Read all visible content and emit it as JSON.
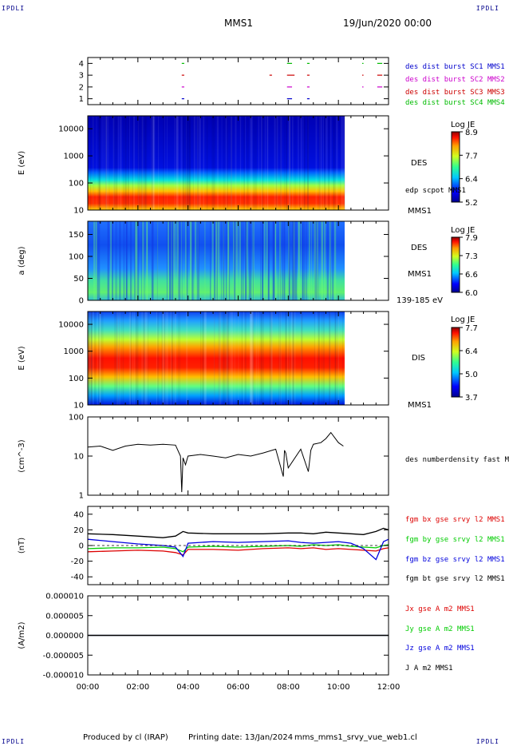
{
  "header": {
    "corner_tl": "IPDLI",
    "corner_tr": "IPDLI",
    "corner_bl": "IPDLI",
    "corner_br": "IPDLI",
    "title": "MMS1",
    "date": "19/Jun/2020 00:00"
  },
  "footer": {
    "produced": "Produced by cl (IRAP)",
    "printing": "Printing date: 13/Jan/2024",
    "file": "mms_mms1_srvy_vue_web1.cl"
  },
  "colors": {
    "des_c1": "#0000cc",
    "des_c2": "#cc00cc",
    "des_c3": "#cc0000",
    "des_c4": "#00bb00",
    "bx": "#dd0000",
    "by": "#00cc00",
    "bz": "#0000dd",
    "bt": "#000000"
  },
  "time_axis": {
    "ticks": [
      "00:00",
      "02:00",
      "04:00",
      "06:00",
      "08:00",
      "10:00",
      "12:00"
    ],
    "range_hours": [
      0,
      12
    ]
  },
  "chart_data": [
    {
      "type": "scatter",
      "panel": "burst",
      "yticks": [
        "1",
        "2",
        "3",
        "4"
      ],
      "ylim": [
        0.5,
        4.5
      ],
      "legend": [
        {
          "text": "des dist burst SC1 MMS1",
          "color": "#0000cc"
        },
        {
          "text": "des dist burst SC2 MMS2",
          "color": "#cc00cc"
        },
        {
          "text": "des dist burst SC3 MMS3",
          "color": "#cc0000"
        },
        {
          "text": "des dist burst SC4 MMS4",
          "color": "#00bb00"
        }
      ],
      "series": [
        {
          "sc": 1,
          "intervals": [
            [
              3.75,
              3.85
            ],
            [
              7.95,
              8.15
            ],
            [
              8.75,
              8.85
            ]
          ]
        },
        {
          "sc": 2,
          "intervals": [
            [
              3.75,
              3.85
            ],
            [
              7.95,
              8.15
            ],
            [
              8.75,
              8.85
            ],
            [
              10.95,
              11.0
            ],
            [
              11.55,
              11.75
            ]
          ]
        },
        {
          "sc": 3,
          "intervals": [
            [
              3.75,
              3.85
            ],
            [
              7.25,
              7.35
            ],
            [
              7.95,
              8.25
            ],
            [
              8.75,
              8.85
            ],
            [
              10.95,
              11.0
            ],
            [
              11.55,
              11.75
            ]
          ]
        },
        {
          "sc": 4,
          "intervals": [
            [
              3.75,
              3.85
            ],
            [
              7.95,
              8.15
            ],
            [
              8.75,
              8.85
            ],
            [
              10.95,
              11.0
            ],
            [
              11.55,
              11.75
            ]
          ]
        }
      ]
    },
    {
      "type": "heatmap",
      "panel": "des_energy",
      "ylabel": "E (eV)",
      "yscale": "log",
      "ylim": [
        10,
        30000
      ],
      "yticks": [
        "10",
        "100",
        "1000",
        "10000"
      ],
      "side_label": "DES",
      "side_label2": "edp scpot MMS1",
      "side_label3": "MMS1",
      "colorbar": {
        "title": "Log JE",
        "ticks": [
          "8.9",
          "7.7",
          "6.4",
          "5.2"
        ],
        "range": [
          5.2,
          8.9
        ]
      },
      "data_end_hour": 10.25
    },
    {
      "type": "heatmap",
      "panel": "des_pitch",
      "ylabel": "a (deg)",
      "ylim": [
        0,
        180
      ],
      "yticks": [
        "0",
        "50",
        "100",
        "150"
      ],
      "side_label": "DES",
      "side_label2": "MMS1",
      "side_label3": "139-185 eV",
      "colorbar": {
        "title": "Log JE",
        "ticks": [
          "7.9",
          "7.3",
          "6.6",
          "6.0"
        ],
        "range": [
          6.0,
          7.9
        ]
      },
      "data_end_hour": 10.25
    },
    {
      "type": "heatmap",
      "panel": "dis_energy",
      "ylabel": "E (eV)",
      "yscale": "log",
      "ylim": [
        10,
        30000
      ],
      "yticks": [
        "10",
        "100",
        "1000",
        "10000"
      ],
      "side_label": "DIS",
      "side_label2": "MMS1",
      "colorbar": {
        "title": "Log JE",
        "ticks": [
          "7.7",
          "6.4",
          "5.0",
          "3.7"
        ],
        "range": [
          3.7,
          7.7
        ]
      },
      "data_end_hour": 10.25
    },
    {
      "type": "line",
      "panel": "density",
      "ylabel": "(cm^-3)",
      "yscale": "log",
      "ylim": [
        1,
        100
      ],
      "yticks": [
        "1",
        "10",
        "100"
      ],
      "legend": [
        {
          "text": "des numberdensity fast M",
          "color": "#000000"
        }
      ],
      "x": [
        0.0,
        0.5,
        1.0,
        1.5,
        2.0,
        2.5,
        3.0,
        3.5,
        3.7,
        3.75,
        3.8,
        3.9,
        4.0,
        4.5,
        5.0,
        5.5,
        6.0,
        6.5,
        7.0,
        7.5,
        7.8,
        7.85,
        7.9,
        8.0,
        8.5,
        8.8,
        8.9,
        9.0,
        9.3,
        9.5,
        9.7,
        10.0,
        10.2
      ],
      "values": [
        17,
        18,
        14,
        18,
        20,
        19,
        20,
        19,
        10,
        1.2,
        9,
        6,
        10,
        11,
        10,
        9,
        11,
        10,
        12,
        15,
        3,
        14,
        12,
        5,
        15,
        4,
        14,
        20,
        22,
        28,
        40,
        22,
        18
      ]
    },
    {
      "type": "line",
      "panel": "bfield",
      "ylabel": "(nT)",
      "ylim": [
        -50,
        50
      ],
      "yticks": [
        "-40",
        "-20",
        "0",
        "20",
        "40"
      ],
      "x": [
        0,
        1,
        2,
        3,
        3.5,
        3.8,
        4,
        5,
        6,
        7,
        8,
        8.5,
        9,
        9.5,
        10,
        10.5,
        11,
        11.5,
        11.8,
        12
      ],
      "series": [
        {
          "name": "fgm bx gse srvy l2 MMS1",
          "color": "#dd0000",
          "values": [
            -8,
            -7,
            -6,
            -7,
            -9,
            -12,
            -5,
            -5,
            -6,
            -4,
            -3,
            -4,
            -3,
            -5,
            -4,
            -5,
            -6,
            -7,
            -4,
            -3
          ]
        },
        {
          "name": "fgm by gse srvy l2 MMS1",
          "color": "#00cc00",
          "values": [
            -4,
            -3,
            -3,
            -2,
            -4,
            -8,
            -2,
            -1,
            -2,
            -1,
            0,
            -1,
            1,
            0,
            1,
            -1,
            -2,
            -3,
            0,
            1
          ]
        },
        {
          "name": "fgm bz gse srvy l2 MMS1",
          "color": "#0000dd",
          "values": [
            8,
            5,
            2,
            0,
            -2,
            -14,
            3,
            5,
            4,
            5,
            6,
            4,
            3,
            4,
            5,
            3,
            -4,
            -18,
            5,
            8
          ]
        },
        {
          "name": "fgm bt gse srvy l2 MMS1",
          "color": "#000000",
          "values": [
            15,
            14,
            12,
            10,
            12,
            18,
            16,
            15,
            15,
            15,
            16,
            16,
            15,
            17,
            16,
            15,
            14,
            18,
            22,
            20
          ]
        }
      ]
    },
    {
      "type": "line",
      "panel": "current",
      "ylabel": "(A/m2)",
      "ylim": [
        -1e-05,
        1e-05
      ],
      "yticks": [
        "0.000010",
        "0.000005",
        "0.000000",
        "-0.000005",
        "-0.000010"
      ],
      "x": [
        0,
        12
      ],
      "series": [
        {
          "name": "Jx gse A m2 MMS1",
          "color": "#dd0000",
          "values": [
            0,
            0
          ]
        },
        {
          "name": "Jy gse A m2 MMS1",
          "color": "#00cc00",
          "values": [
            0,
            0
          ]
        },
        {
          "name": "Jz gse A m2 MMS1",
          "color": "#0000dd",
          "values": [
            0,
            0
          ]
        },
        {
          "name": "J A m2 MMS1",
          "color": "#000000",
          "values": [
            0,
            0
          ]
        }
      ]
    }
  ]
}
